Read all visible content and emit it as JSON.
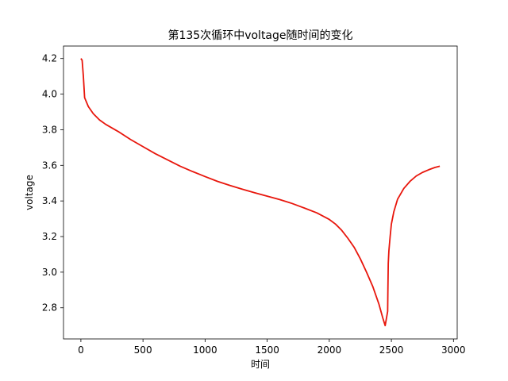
{
  "chart_data": {
    "type": "line",
    "title": "第135次循环中voltage随时间的变化",
    "xlabel": "时间",
    "ylabel": "voltage",
    "xlim": [
      -140,
      3030
    ],
    "ylim": [
      2.625,
      4.27
    ],
    "xticks": [
      0,
      500,
      1000,
      1500,
      2000,
      2500,
      3000
    ],
    "yticks": [
      2.8,
      3.0,
      3.2,
      3.4,
      3.6,
      3.8,
      4.0,
      4.2
    ],
    "ytick_labels": [
      "2.8",
      "3.0",
      "3.2",
      "3.4",
      "3.6",
      "3.8",
      "4.0",
      "4.2"
    ],
    "grid": false,
    "series": [
      {
        "color": "#e8160c",
        "x": [
          0,
          10,
          20,
          30,
          60,
          100,
          150,
          200,
          300,
          400,
          500,
          600,
          700,
          800,
          900,
          1000,
          1100,
          1200,
          1300,
          1400,
          1500,
          1600,
          1700,
          1800,
          1900,
          2000,
          2050,
          2100,
          2150,
          2200,
          2250,
          2300,
          2350,
          2400,
          2430,
          2450,
          2470,
          2472,
          2475,
          2480,
          2490,
          2500,
          2520,
          2550,
          2600,
          2650,
          2700,
          2750,
          2800,
          2850,
          2890
        ],
        "y": [
          4.2,
          4.19,
          4.1,
          3.98,
          3.93,
          3.89,
          3.855,
          3.83,
          3.79,
          3.745,
          3.705,
          3.665,
          3.63,
          3.595,
          3.565,
          3.537,
          3.51,
          3.487,
          3.466,
          3.446,
          3.427,
          3.408,
          3.386,
          3.36,
          3.333,
          3.296,
          3.27,
          3.235,
          3.19,
          3.14,
          3.075,
          3.0,
          2.92,
          2.82,
          2.745,
          2.7,
          2.78,
          2.9,
          3.05,
          3.12,
          3.2,
          3.27,
          3.34,
          3.41,
          3.47,
          3.51,
          3.54,
          3.56,
          3.575,
          3.588,
          3.595
        ]
      }
    ]
  }
}
